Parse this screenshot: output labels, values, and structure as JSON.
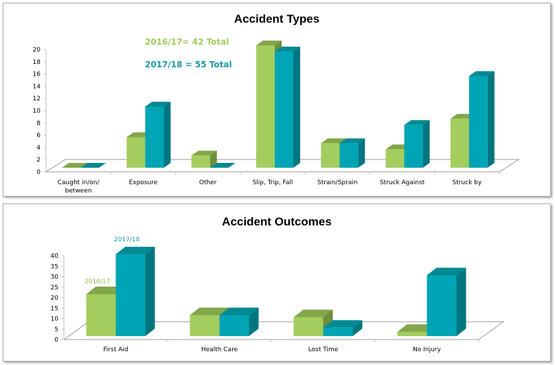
{
  "colors": {
    "series1": "#a3cd5e",
    "series1_top": "#82a64a",
    "series1_side": "#6f8f3c",
    "series2": "#00a5b5",
    "series2_top": "#008a94",
    "series2_side": "#007680"
  },
  "chart_data": [
    {
      "type": "bar",
      "title": "Accident Types",
      "categories": [
        "Caught in/on/ between",
        "Exposure",
        "Other",
        "Slip, Trip, Fall",
        "Strain/Sprain",
        "Struck Against",
        "Struck by"
      ],
      "series": [
        {
          "name": "2016/17",
          "values": [
            0,
            5,
            2,
            20,
            4,
            3,
            8
          ]
        },
        {
          "name": "2017/18",
          "values": [
            0,
            10,
            0,
            19,
            4,
            7,
            15
          ]
        }
      ],
      "annotations": [
        "2016/17= 42 Total",
        "2017/18 = 55 Total"
      ],
      "xlabel": "",
      "ylabel": "",
      "ylim": [
        0,
        20
      ],
      "yticks": [
        "0",
        "2",
        "4",
        "6",
        "8",
        "10",
        "12",
        "14",
        "16",
        "18",
        "20"
      ],
      "grid": false,
      "legend": "none",
      "style": "3d-column"
    },
    {
      "type": "bar",
      "title": "Accident Outcomes",
      "categories": [
        "First Aid",
        "Health Care",
        "Lost Time",
        "No Injury"
      ],
      "series": [
        {
          "name": "2016/17",
          "values": [
            20,
            10,
            9,
            2
          ]
        },
        {
          "name": "2017/18",
          "values": [
            39,
            10,
            4,
            29
          ]
        }
      ],
      "annotations": [
        "2016/17",
        "2017/18"
      ],
      "xlabel": "",
      "ylabel": "",
      "ylim": [
        0,
        40
      ],
      "yticks": [
        "0",
        "5",
        "10",
        "15",
        "20",
        "25",
        "30",
        "35",
        "40"
      ],
      "grid": false,
      "legend": "none",
      "style": "3d-column"
    }
  ]
}
